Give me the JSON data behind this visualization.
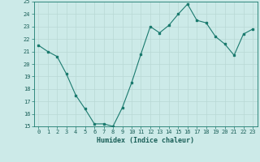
{
  "x": [
    0,
    1,
    2,
    3,
    4,
    5,
    6,
    7,
    8,
    9,
    10,
    11,
    12,
    13,
    14,
    15,
    16,
    17,
    18,
    19,
    20,
    21,
    22,
    23
  ],
  "y": [
    21.5,
    21.0,
    20.6,
    19.2,
    17.5,
    16.4,
    15.2,
    15.2,
    15.0,
    16.5,
    18.5,
    20.8,
    23.0,
    22.5,
    23.1,
    24.0,
    24.8,
    23.5,
    23.3,
    22.2,
    21.6,
    20.7,
    22.4,
    22.8
  ],
  "xlabel": "Humidex (Indice chaleur)",
  "ylim": [
    15,
    25
  ],
  "xlim": [
    -0.5,
    23.5
  ],
  "yticks": [
    15,
    16,
    17,
    18,
    19,
    20,
    21,
    22,
    23,
    24,
    25
  ],
  "xticks": [
    0,
    1,
    2,
    3,
    4,
    5,
    6,
    7,
    8,
    9,
    10,
    11,
    12,
    13,
    14,
    15,
    16,
    17,
    18,
    19,
    20,
    21,
    22,
    23
  ],
  "line_color": "#1a7a6e",
  "bg_color": "#cceae8",
  "grid_color": "#b8d8d5",
  "axis_label_color": "#1a5f58",
  "tick_label_color": "#1a5f58",
  "tick_fontsize": 5.0,
  "xlabel_fontsize": 6.0
}
